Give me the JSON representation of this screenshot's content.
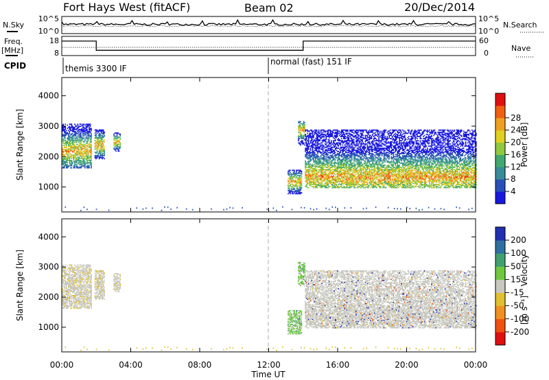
{
  "chart_data": {
    "type": "heatmap",
    "header": {
      "radar": "Fort Hays West (fitACF)",
      "beam": "Beam 02",
      "date": "20/Dec/2014"
    },
    "x_axis": {
      "label": "Time UT",
      "range_hours": [
        0,
        24
      ],
      "ticks": [
        "00:00",
        "04:00",
        "08:00",
        "12:00",
        "16:00",
        "20:00",
        "00:00"
      ],
      "marker_hour": 12
    },
    "noise_panel": {
      "left_label": "N.Sky",
      "right_label": "N.Search",
      "left_ticks": [
        "10^5",
        "10^0"
      ],
      "right_ticks": [
        "10^5",
        "10^0"
      ]
    },
    "freq_panel": {
      "left_label": "Freq.",
      "left_unit": "[MHz]",
      "right_label": "Nave",
      "left_ticks": [
        "18",
        "8"
      ],
      "right_ticks": [
        "60",
        "0"
      ],
      "freq_steps": [
        {
          "t0": 0.0,
          "t1": 2.0,
          "mhz": 16.8
        },
        {
          "t0": 2.0,
          "t1": 14.0,
          "mhz": 11.2
        },
        {
          "t0": 14.0,
          "t1": 24.0,
          "mhz": 16.8
        }
      ],
      "nave_level": 30
    },
    "cpid": {
      "label": "CPID",
      "segments": [
        {
          "start_hour": 0,
          "text": "themis 3300 IF"
        },
        {
          "start_hour": 12,
          "text": "normal (fast) 151 IF"
        }
      ]
    },
    "power_panel": {
      "ylabel": "Slant Range [km]",
      "yticks": [
        1000,
        2000,
        3000,
        4000
      ],
      "ylim": [
        180,
        4600
      ],
      "colorbar": {
        "label": "Power [dB]",
        "ticks": [
          "4",
          "8",
          "12",
          "16",
          "20",
          "24",
          "28"
        ],
        "colors": [
          "#1818e0",
          "#2850b8",
          "#388c98",
          "#40a870",
          "#90c840",
          "#e0d020",
          "#f0a020",
          "#f06010",
          "#e01010"
        ]
      }
    },
    "velocity_panel": {
      "ylabel": "Slant Range [km]",
      "yticks": [
        1000,
        2000,
        3000,
        4000
      ],
      "ylim": [
        180,
        4600
      ],
      "colorbar": {
        "label": "Velocity",
        "unit": "[m s⁻¹]",
        "ticks": [
          "200",
          "100",
          "50",
          "15",
          "-15",
          "-50",
          "-100",
          "-200"
        ],
        "colors": [
          "#2030b0",
          "#3070a0",
          "#40a070",
          "#70c840",
          "#c8c8c0",
          "#e0c030",
          "#f09020",
          "#f05010",
          "#e01010"
        ]
      }
    },
    "echo_regions": [
      {
        "t0": 0.0,
        "t1": 1.7,
        "r0": 1650,
        "r1": 3100,
        "peak": 2200
      },
      {
        "t0": 1.9,
        "t1": 2.5,
        "r0": 1950,
        "r1": 2900,
        "peak": 2400
      },
      {
        "t0": 3.0,
        "t1": 3.4,
        "r0": 2200,
        "r1": 2800,
        "peak": 2500
      },
      {
        "t0": 13.1,
        "t1": 13.9,
        "r0": 800,
        "r1": 1600,
        "peak": 1200
      },
      {
        "t0": 13.7,
        "t1": 14.1,
        "r0": 2400,
        "r1": 3200,
        "peak": 2900
      },
      {
        "t0": 14.1,
        "t1": 24.0,
        "r0": 1000,
        "r1": 2900,
        "peak": 1350
      }
    ]
  }
}
